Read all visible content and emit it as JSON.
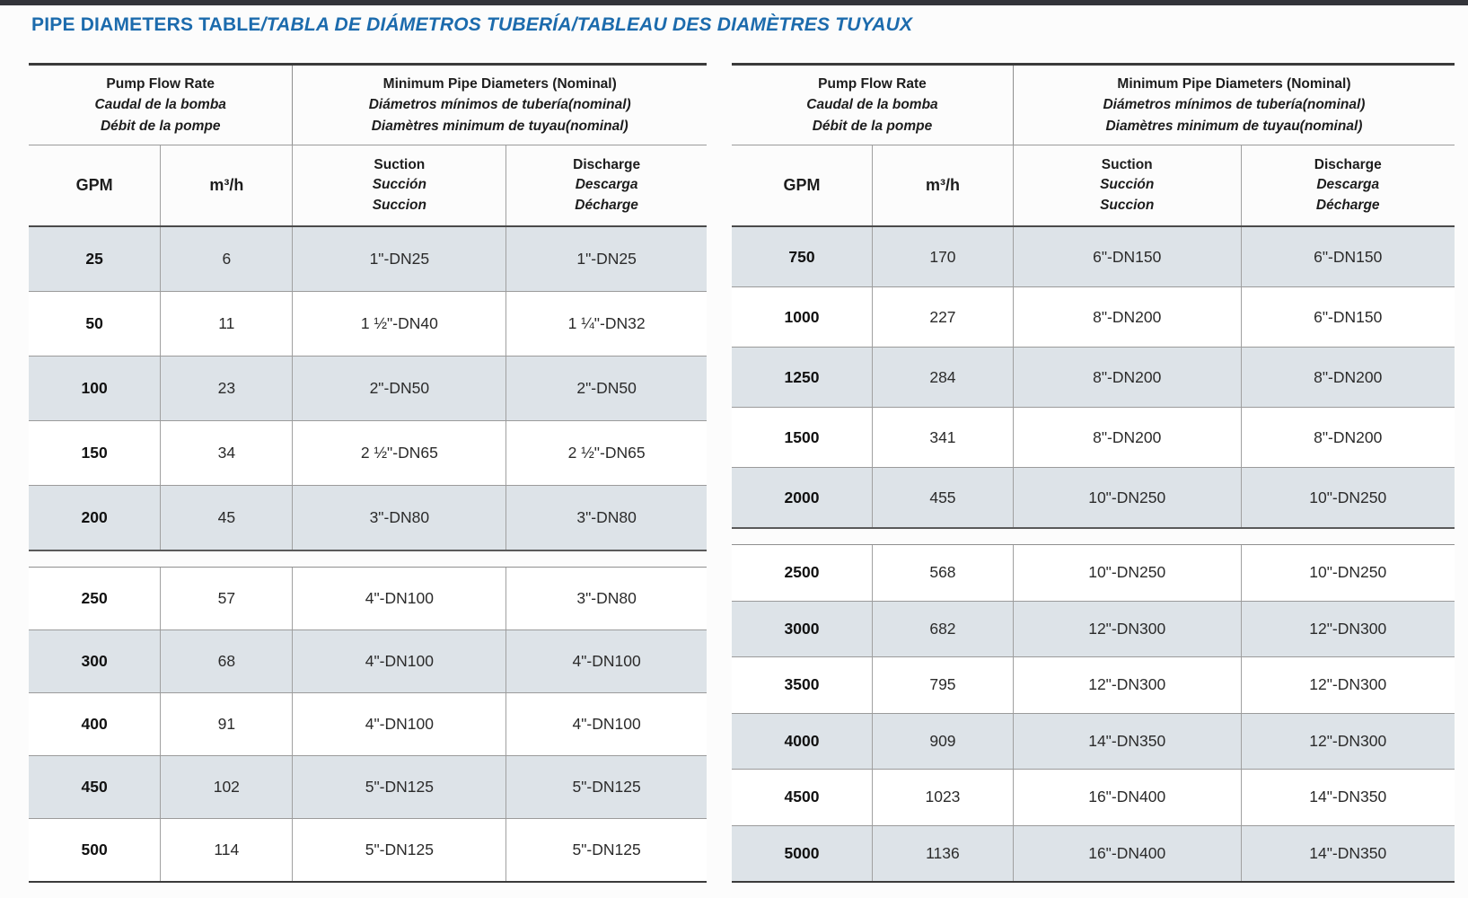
{
  "title": {
    "main": "PIPE DIAMETERS TABLE",
    "translations": "/TABLA DE DIÁMETROS TUBERÍA/TABLEAU DES DIAMÈTRES TUYAUX",
    "color": "#1c6bad"
  },
  "colors": {
    "row_shade": "#dde3e8",
    "title_blue": "#1c6bad"
  },
  "headers": {
    "flow": {
      "en": "Pump Flow Rate",
      "es": "Caudal de la bomba",
      "fr": "Débit de la pompe"
    },
    "diam": {
      "en": "Minimum Pipe Diameters (Nominal)",
      "es": "Diámetros mínimos de tubería(nominal)",
      "fr": "Diamètres minimum de tuyau(nominal)"
    },
    "gpm": "GPM",
    "m3h": "m³/h",
    "suction": {
      "en": "Suction",
      "es": "Succión",
      "fr": "Succion"
    },
    "discharge": {
      "en": "Discharge",
      "es": "Descarga",
      "fr": "Décharge"
    }
  },
  "tables": [
    {
      "name": "low-flow",
      "sections": [
        {
          "rows": [
            [
              "25",
              "6",
              "1\"-DN25",
              "1\"-DN25"
            ],
            [
              "50",
              "11",
              "1 ½\"-DN40",
              "1 ¼\"-DN32"
            ],
            [
              "100",
              "23",
              "2\"-DN50",
              "2\"-DN50"
            ],
            [
              "150",
              "34",
              "2 ½\"-DN65",
              "2 ½\"-DN65"
            ],
            [
              "200",
              "45",
              "3\"-DN80",
              "3\"-DN80"
            ]
          ]
        },
        {
          "rows": [
            [
              "250",
              "57",
              "4\"-DN100",
              "3\"-DN80"
            ],
            [
              "300",
              "68",
              "4\"-DN100",
              "4\"-DN100"
            ],
            [
              "400",
              "91",
              "4\"-DN100",
              "4\"-DN100"
            ],
            [
              "450",
              "102",
              "5\"-DN125",
              "5\"-DN125"
            ],
            [
              "500",
              "114",
              "5\"-DN125",
              "5\"-DN125"
            ]
          ]
        }
      ]
    },
    {
      "name": "high-flow",
      "sections": [
        {
          "rows": [
            [
              "750",
              "170",
              "6\"-DN150",
              "6\"-DN150"
            ],
            [
              "1000",
              "227",
              "8\"-DN200",
              "6\"-DN150"
            ],
            [
              "1250",
              "284",
              "8\"-DN200",
              "8\"-DN200"
            ],
            [
              "1500",
              "341",
              "8\"-DN200",
              "8\"-DN200"
            ],
            [
              "2000",
              "455",
              "10\"-DN250",
              "10\"-DN250"
            ]
          ]
        },
        {
          "rows": [
            [
              "2500",
              "568",
              "10\"-DN250",
              "10\"-DN250"
            ],
            [
              "3000",
              "682",
              "12\"-DN300",
              "12\"-DN300"
            ],
            [
              "3500",
              "795",
              "12\"-DN300",
              "12\"-DN300"
            ],
            [
              "4000",
              "909",
              "14\"-DN350",
              "12\"-DN300"
            ],
            [
              "4500",
              "1023",
              "16\"-DN400",
              "14\"-DN350"
            ],
            [
              "5000",
              "1136",
              "16\"-DN400",
              "14\"-DN350"
            ]
          ]
        }
      ]
    }
  ]
}
